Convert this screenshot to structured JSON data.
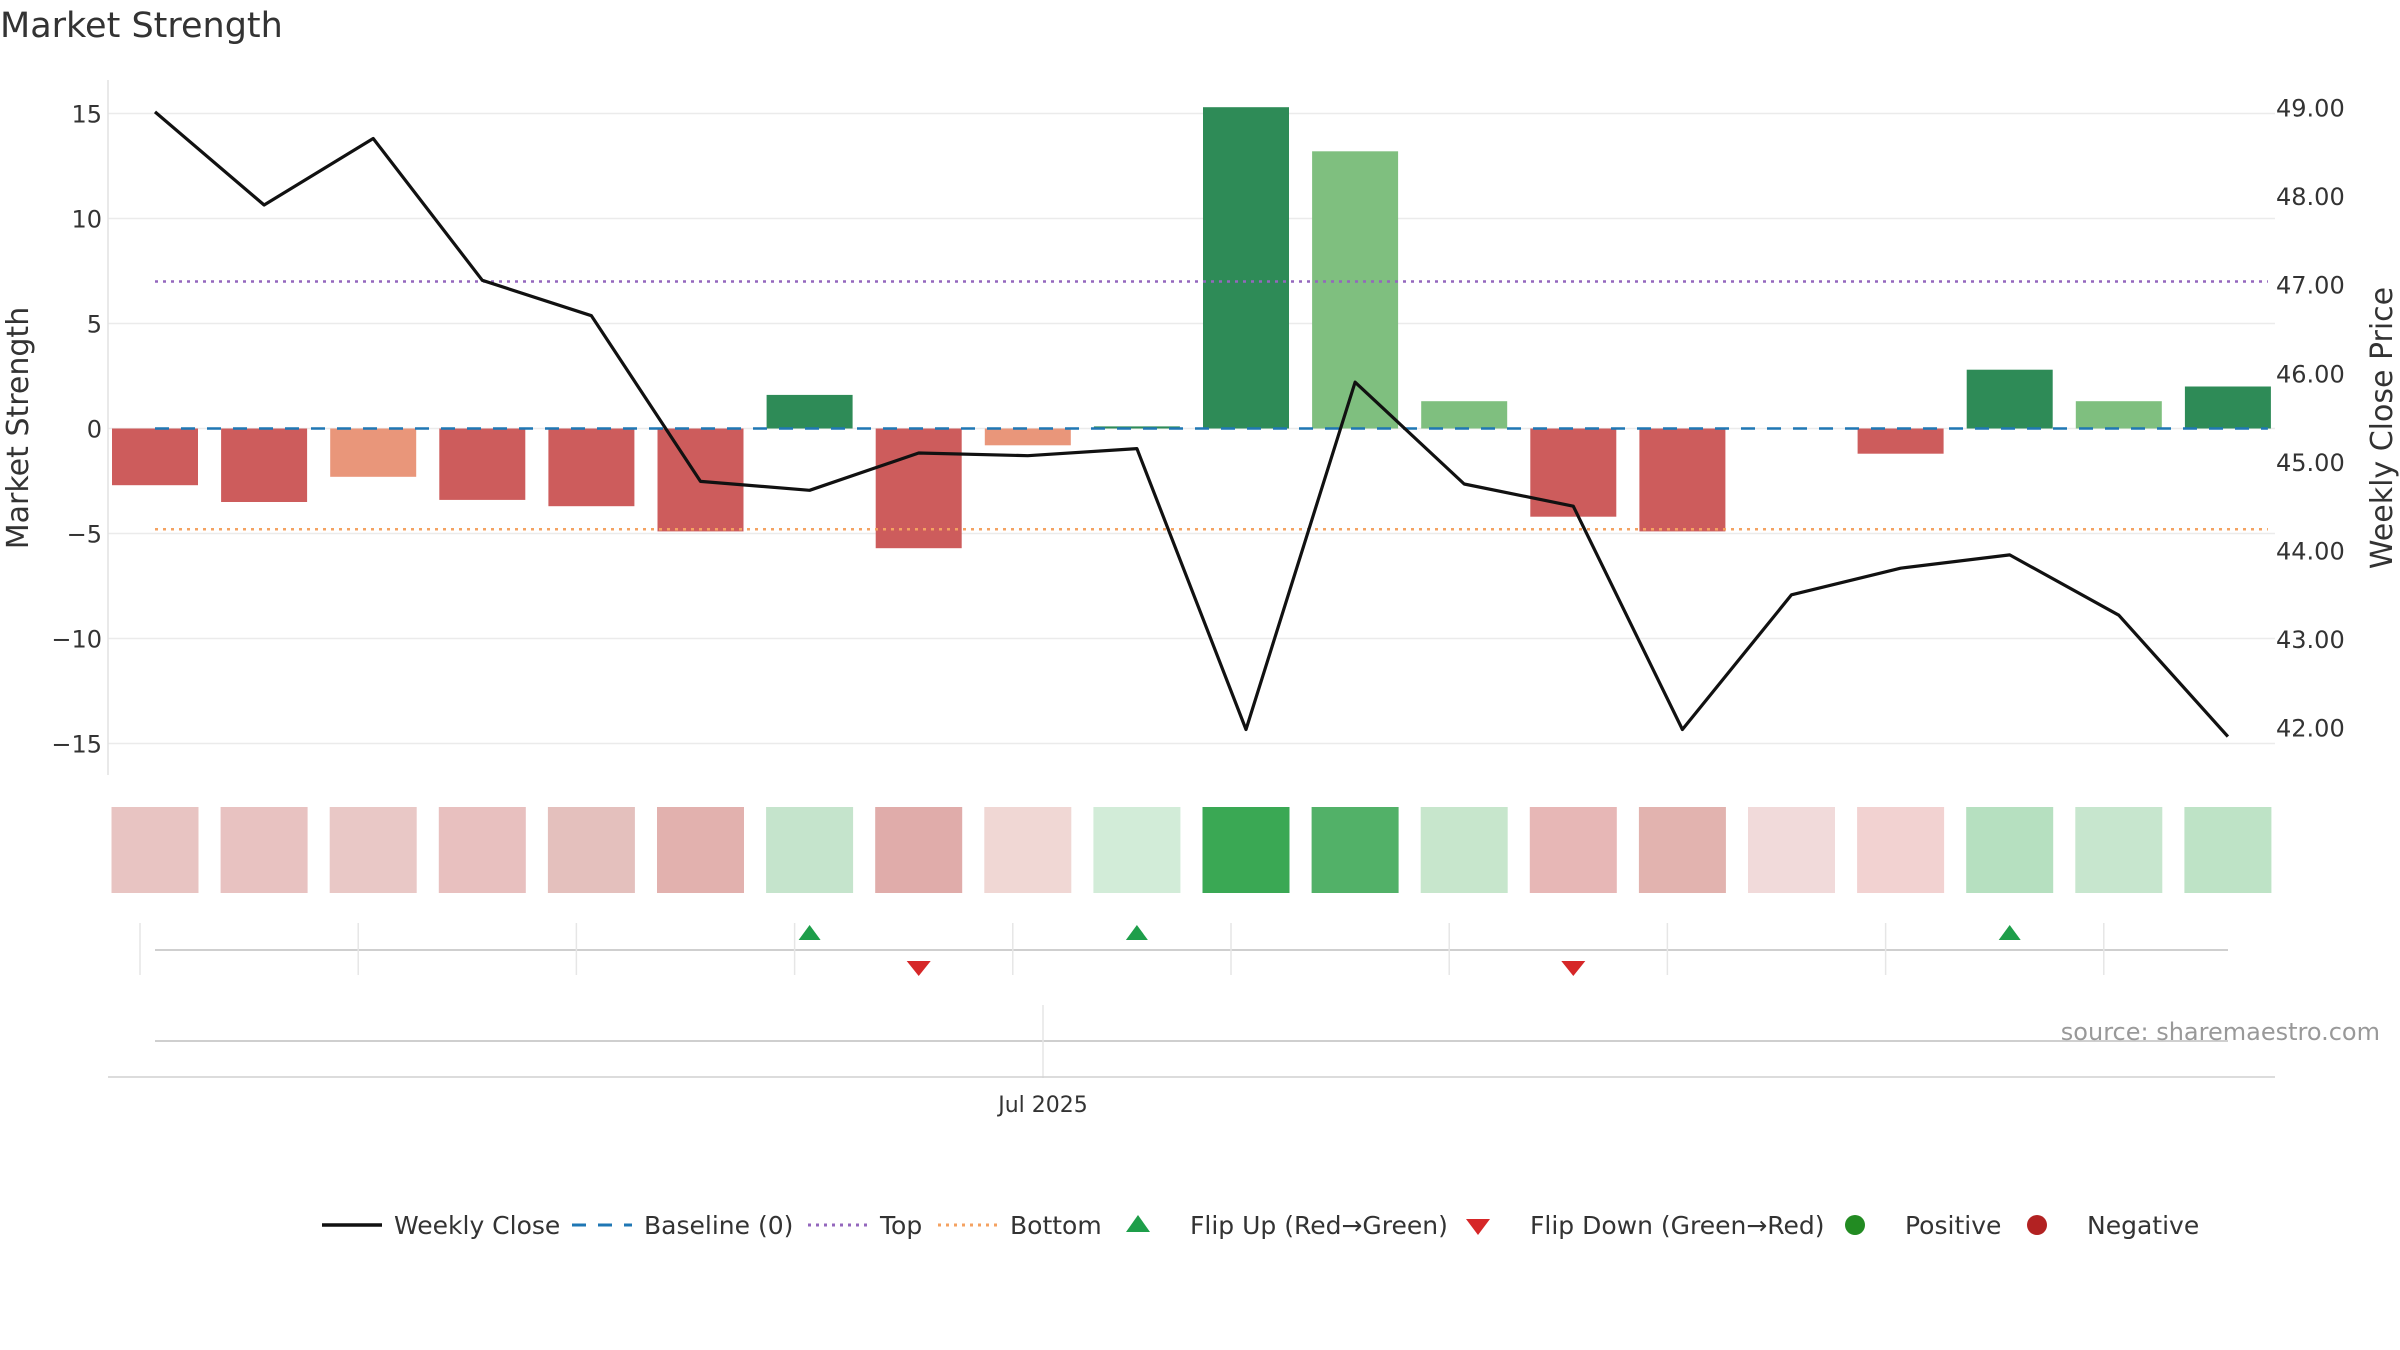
{
  "chart_data": {
    "type": "bar",
    "title": "Market Strength",
    "ylabel_left": "Market Strength",
    "ylabel_right": "Weekly Close Price",
    "source": "source: sharemaestro.com",
    "x_tick_label": "Jul 2025",
    "ylim_left": [
      -17.5,
      16.5
    ],
    "ylim_right": [
      41.85,
      49.2
    ],
    "left_ticks": [
      15,
      10,
      5,
      0,
      -5,
      -10,
      -15
    ],
    "left_tick_labels": [
      "15",
      "10",
      "5",
      "0",
      "−10",
      "−15"
    ],
    "left_tick_labels_full": [
      "15",
      "10",
      "5",
      "0",
      "−5",
      "−10",
      "−15"
    ],
    "right_ticks": [
      49,
      48,
      47,
      46,
      45,
      44,
      43,
      42
    ],
    "right_tick_labels": [
      "49.00",
      "48.00",
      "47.00",
      "46.00",
      "45.00",
      "44.00",
      "43.00",
      "42.00"
    ],
    "grid": true,
    "legend_position": "bottom",
    "top_level": 7.0,
    "bottom_level": -4.8,
    "baseline": 0,
    "series": [
      {
        "name": "Market Strength",
        "values": [
          -2.7,
          -3.5,
          -2.3,
          -3.4,
          -3.7,
          -4.9,
          1.6,
          -5.7,
          -0.8,
          0.1,
          15.3,
          13.2,
          1.3,
          -4.2,
          -4.9,
          0,
          -1.2,
          2.8,
          1.3,
          2.0
        ],
        "colors": [
          "#cd5c5c",
          "#cd5c5c",
          "#e9967a",
          "#cd5c5c",
          "#cd5c5c",
          "#cd5c5c",
          "#2e8b57",
          "#cd5c5c",
          "#e9967a",
          "#2e8b57",
          "#2e8b57",
          "#7fbf7f",
          "#7fbf7f",
          "#cd5c5c",
          "#cd5c5c",
          "#cd5c5c",
          "#cd5c5c",
          "#2e8b57",
          "#7fbf7f",
          "#2e8b57"
        ]
      },
      {
        "name": "Weekly Close",
        "values": [
          48.95,
          47.9,
          48.65,
          47.05,
          46.65,
          44.78,
          44.68,
          45.1,
          45.07,
          45.15,
          41.98,
          45.9,
          44.75,
          44.5,
          41.98,
          43.5,
          43.8,
          43.95,
          43.27,
          41.9
        ]
      }
    ],
    "heat_strip_colors": [
      "#e8c4c2",
      "#e8c2c1",
      "#e9c8c6",
      "#e8c0bf",
      "#e4c0bd",
      "#e2b1ae",
      "#c5e4cc",
      "#e0acaa",
      "#f0d7d4",
      "#d2ecd8",
      "#3aa854",
      "#52b168",
      "#c7e6cc",
      "#e7b7b6",
      "#e2b3af",
      "#f1dada",
      "#f2d2d1",
      "#b6e0c0",
      "#c7e6ce",
      "#bee3c6"
    ],
    "flip_up_indices": [
      6,
      9,
      17
    ],
    "flip_down_indices": [
      7,
      13
    ],
    "legend": [
      {
        "label": "Weekly Close",
        "kind": "line",
        "color": "#111111"
      },
      {
        "label": "Baseline (0)",
        "kind": "dash",
        "color": "#1f77b4"
      },
      {
        "label": "Top",
        "kind": "dot",
        "color": "#9467bd"
      },
      {
        "label": "Bottom",
        "kind": "dot",
        "color": "#f4a261"
      },
      {
        "label": "Flip Up (Red→Green)",
        "kind": "tri-up",
        "color": "#1e9e4a"
      },
      {
        "label": "Flip Down (Green→Red)",
        "kind": "tri-down",
        "color": "#d62728"
      },
      {
        "label": "Positive",
        "kind": "circle",
        "color": "#228b22"
      },
      {
        "label": "Negative",
        "kind": "circle",
        "color": "#b22222"
      }
    ]
  }
}
